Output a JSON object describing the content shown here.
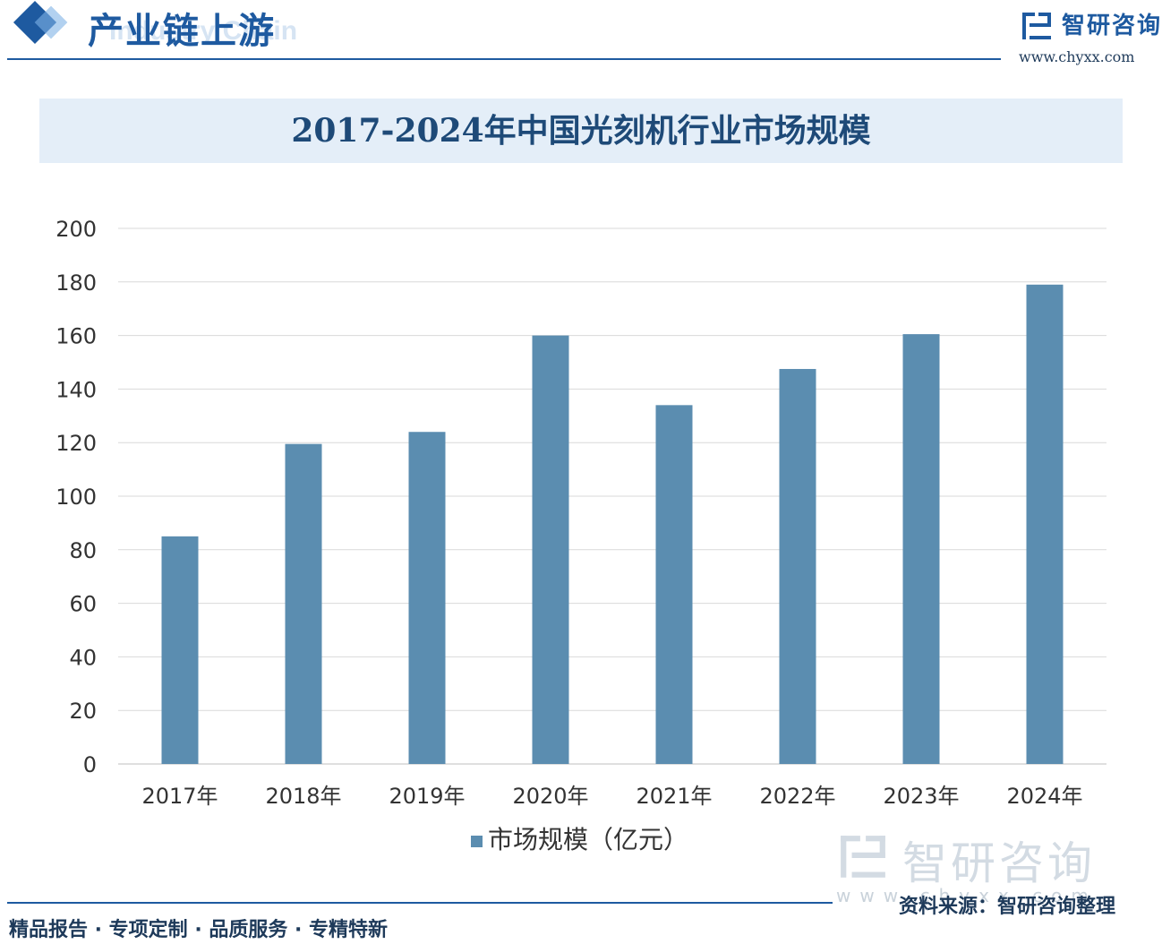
{
  "header": {
    "title": "产业链上游",
    "title_bg": "Industry Chain",
    "logo_text": "智研咨询",
    "logo_url": "www.chyxx.com"
  },
  "chart_data": {
    "type": "bar",
    "title": "2017-2024年中国光刻机行业市场规模",
    "categories": [
      "2017年",
      "2018年",
      "2019年",
      "2020年",
      "2021年",
      "2022年",
      "2023年",
      "2024年"
    ],
    "series": [
      {
        "name": "市场规模（亿元）",
        "values": [
          85,
          119.5,
          124,
          160,
          134,
          147.5,
          160.5,
          179
        ],
        "color": "#5b8db0"
      }
    ],
    "ylim": [
      0,
      200
    ],
    "yticks": [
      0,
      20,
      40,
      60,
      80,
      100,
      120,
      140,
      160,
      180,
      200
    ],
    "grid": true,
    "legend_position": "bottom"
  },
  "footer": {
    "tagline": "精品报告 · 专项定制 · 品质服务 · 专精特新",
    "source": "资料来源：智研咨询整理",
    "watermark": "智研咨询",
    "watermark_url": "www.chyxx.com"
  }
}
